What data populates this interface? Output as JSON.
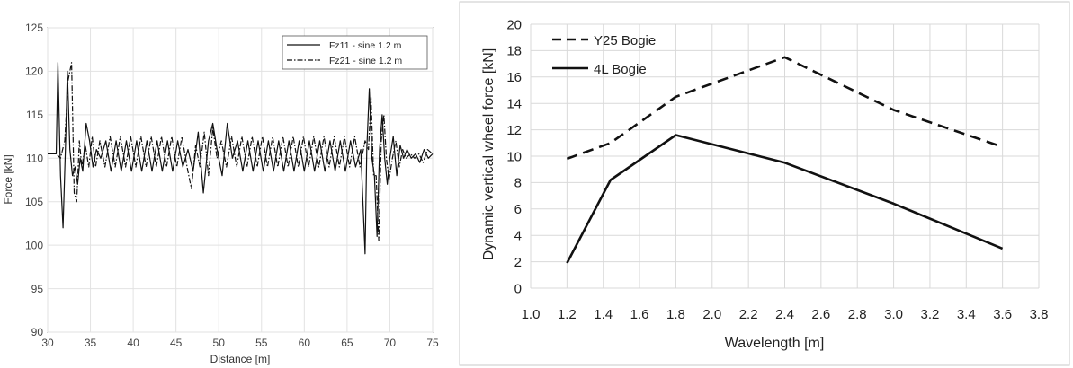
{
  "chart_data": [
    {
      "type": "line",
      "xlabel": "Distance [m]",
      "ylabel": "Force [kN]",
      "xlim": [
        30,
        75
      ],
      "ylim": [
        90,
        125
      ],
      "x_ticks": [
        "30",
        "35",
        "40",
        "45",
        "50",
        "55",
        "60",
        "65",
        "70",
        "75"
      ],
      "y_ticks": [
        "90",
        "95",
        "100",
        "105",
        "110",
        "115",
        "120",
        "125"
      ],
      "grid": true,
      "legend_position": "top-right",
      "series": [
        {
          "name": "Fz11 - sine 1.2 m",
          "style": "solid",
          "x": [
            30,
            31,
            31.2,
            31.5,
            31.8,
            32.1,
            32.3,
            32.6,
            32.9,
            33.2,
            33.5,
            33.8,
            34.1,
            34.5,
            34.9,
            35.3,
            35.7,
            36.2,
            36.8,
            37.4,
            38,
            38.6,
            39.2,
            39.8,
            40.4,
            41,
            41.6,
            42.2,
            42.8,
            43.4,
            44,
            44.6,
            45.2,
            45.8,
            46.4,
            47,
            47.6,
            48.2,
            48.8,
            49.3,
            49.8,
            50.4,
            51,
            51.6,
            52.2,
            52.8,
            53.4,
            54,
            54.6,
            55.2,
            55.8,
            56.4,
            57,
            57.6,
            58.2,
            58.8,
            59.4,
            60,
            60.6,
            61.2,
            61.8,
            62.4,
            63,
            63.6,
            64.2,
            64.8,
            65.4,
            66,
            66.6,
            67.1,
            67.3,
            67.6,
            67.9,
            68.2,
            68.5,
            68.8,
            69.1,
            69.4,
            69.7,
            70,
            70.4,
            70.8,
            71.2,
            71.6,
            72,
            72.5,
            73,
            73.5,
            74,
            74.5,
            75
          ],
          "y": [
            110.5,
            110.5,
            121,
            108,
            102,
            112,
            120,
            111,
            108,
            109,
            107,
            110,
            108.5,
            114,
            112,
            109,
            111,
            110,
            112,
            108.5,
            112,
            108.5,
            112,
            108.5,
            112,
            108.5,
            112,
            108.5,
            112,
            108.5,
            112,
            108.5,
            112,
            109,
            111,
            108.5,
            113,
            106,
            112,
            114,
            111,
            108,
            114,
            110,
            112,
            108.5,
            112,
            108.5,
            112,
            108.5,
            112,
            108.5,
            112,
            108.5,
            112,
            108.5,
            112,
            108.5,
            112,
            108.5,
            112,
            108.5,
            112,
            108.5,
            112,
            108.5,
            112,
            109,
            111,
            99,
            111,
            118,
            110,
            108,
            101,
            111,
            115,
            110,
            107,
            110,
            112.5,
            108,
            111.5,
            110,
            111,
            110,
            110.5,
            109.5,
            111,
            110,
            110.5
          ]
        },
        {
          "name": "Fz21 - sine 1.2 m",
          "style": "dash-dot",
          "x": [
            30,
            31,
            31.5,
            32,
            32.4,
            32.8,
            33.1,
            33.4,
            33.7,
            34,
            34.4,
            34.8,
            35.2,
            35.6,
            36.1,
            36.7,
            37.3,
            37.9,
            38.5,
            39.1,
            39.7,
            40.3,
            40.9,
            41.5,
            42.1,
            42.7,
            43.3,
            43.9,
            44.5,
            45.1,
            45.7,
            46.3,
            46.8,
            47.3,
            47.8,
            48.3,
            48.8,
            49.3,
            49.8,
            50.3,
            50.9,
            51.5,
            52.1,
            52.7,
            53.3,
            53.9,
            54.5,
            55.1,
            55.7,
            56.3,
            56.9,
            57.5,
            58.1,
            58.7,
            59.3,
            59.9,
            60.5,
            61.1,
            61.7,
            62.3,
            62.9,
            63.5,
            64.1,
            64.7,
            65.3,
            65.9,
            66.5,
            67.1,
            67.5,
            67.8,
            68.1,
            68.4,
            68.7,
            69,
            69.3,
            69.6,
            69.9,
            70.3,
            70.7,
            71.1,
            71.5,
            71.9,
            72.4,
            72.9,
            73.4,
            73.9,
            74.4,
            75
          ],
          "y": [
            110.5,
            110.5,
            110,
            112,
            119,
            121,
            106,
            105,
            112,
            109,
            111.5,
            109,
            112.5,
            109,
            112,
            109,
            112.5,
            109,
            112.5,
            109,
            112.5,
            109,
            112.5,
            109,
            112.5,
            109,
            112.5,
            109,
            112.5,
            109,
            112.5,
            109,
            106.5,
            111.5,
            109,
            113,
            108,
            113.5,
            110,
            112,
            109,
            112.5,
            109,
            112.5,
            109,
            112.5,
            109,
            112.5,
            109,
            112.5,
            109,
            112.5,
            109,
            112.5,
            109,
            112.5,
            109,
            112.5,
            109,
            112.5,
            109,
            112.5,
            109,
            112.5,
            109,
            112.5,
            109,
            112,
            111,
            117,
            108,
            108,
            100.5,
            112,
            115,
            110,
            107.5,
            110,
            112,
            109,
            111,
            110,
            110.5,
            110,
            110.5,
            109.5,
            111,
            110.5
          ]
        }
      ]
    },
    {
      "type": "line",
      "xlabel": "Wavelength [m]",
      "ylabel": "Dynamic vertical wheel force [kN]",
      "xlim": [
        1.0,
        3.8
      ],
      "ylim": [
        0,
        20
      ],
      "x_ticks": [
        "1.0",
        "1.2",
        "1.4",
        "1.6",
        "1.8",
        "2.0",
        "2.2",
        "2.4",
        "2.6",
        "2.8",
        "3.0",
        "3.2",
        "3.4",
        "3.6",
        "3.8"
      ],
      "y_ticks": [
        "0",
        "2",
        "4",
        "6",
        "8",
        "10",
        "12",
        "14",
        "16",
        "18",
        "20"
      ],
      "grid": true,
      "legend_position": "top-left",
      "series": [
        {
          "name": "Y25 Bogie",
          "style": "dashed",
          "x": [
            1.2,
            1.44,
            1.8,
            2.4,
            3.0,
            3.6
          ],
          "y": [
            9.8,
            11.0,
            14.5,
            17.5,
            13.5,
            10.7
          ]
        },
        {
          "name": "4L Bogie",
          "style": "solid",
          "x": [
            1.2,
            1.44,
            1.8,
            2.4,
            3.0,
            3.6
          ],
          "y": [
            1.9,
            8.2,
            11.6,
            9.5,
            6.4,
            3.0
          ]
        }
      ]
    }
  ]
}
